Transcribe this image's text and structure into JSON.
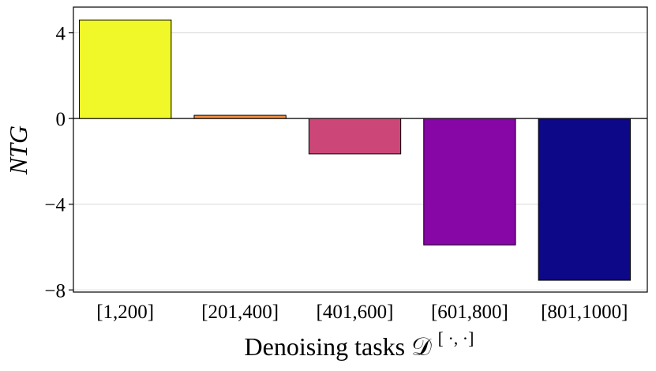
{
  "chart_data": {
    "type": "bar",
    "categories": [
      "[1,200]",
      "[201,400]",
      "[401,600]",
      "[601,800]",
      "[801,1000]"
    ],
    "values": [
      4.6,
      0.15,
      -1.65,
      -5.9,
      -7.55
    ],
    "colors": [
      "#f1f82a",
      "#f08f43",
      "#cc4778",
      "#8606a6",
      "#0d0887"
    ],
    "xlabel": "Denoising tasks 𝒟",
    "xlabel_superscript": "[ ·, ·]",
    "ylabel": "NTG",
    "yticks": [
      4,
      0,
      -4,
      -8
    ],
    "ytick_labels": [
      "4",
      "0",
      "−4",
      "−8"
    ],
    "ylim": [
      -8.1,
      5.2
    ],
    "grid": true,
    "zero_line": true,
    "legend": "none"
  }
}
